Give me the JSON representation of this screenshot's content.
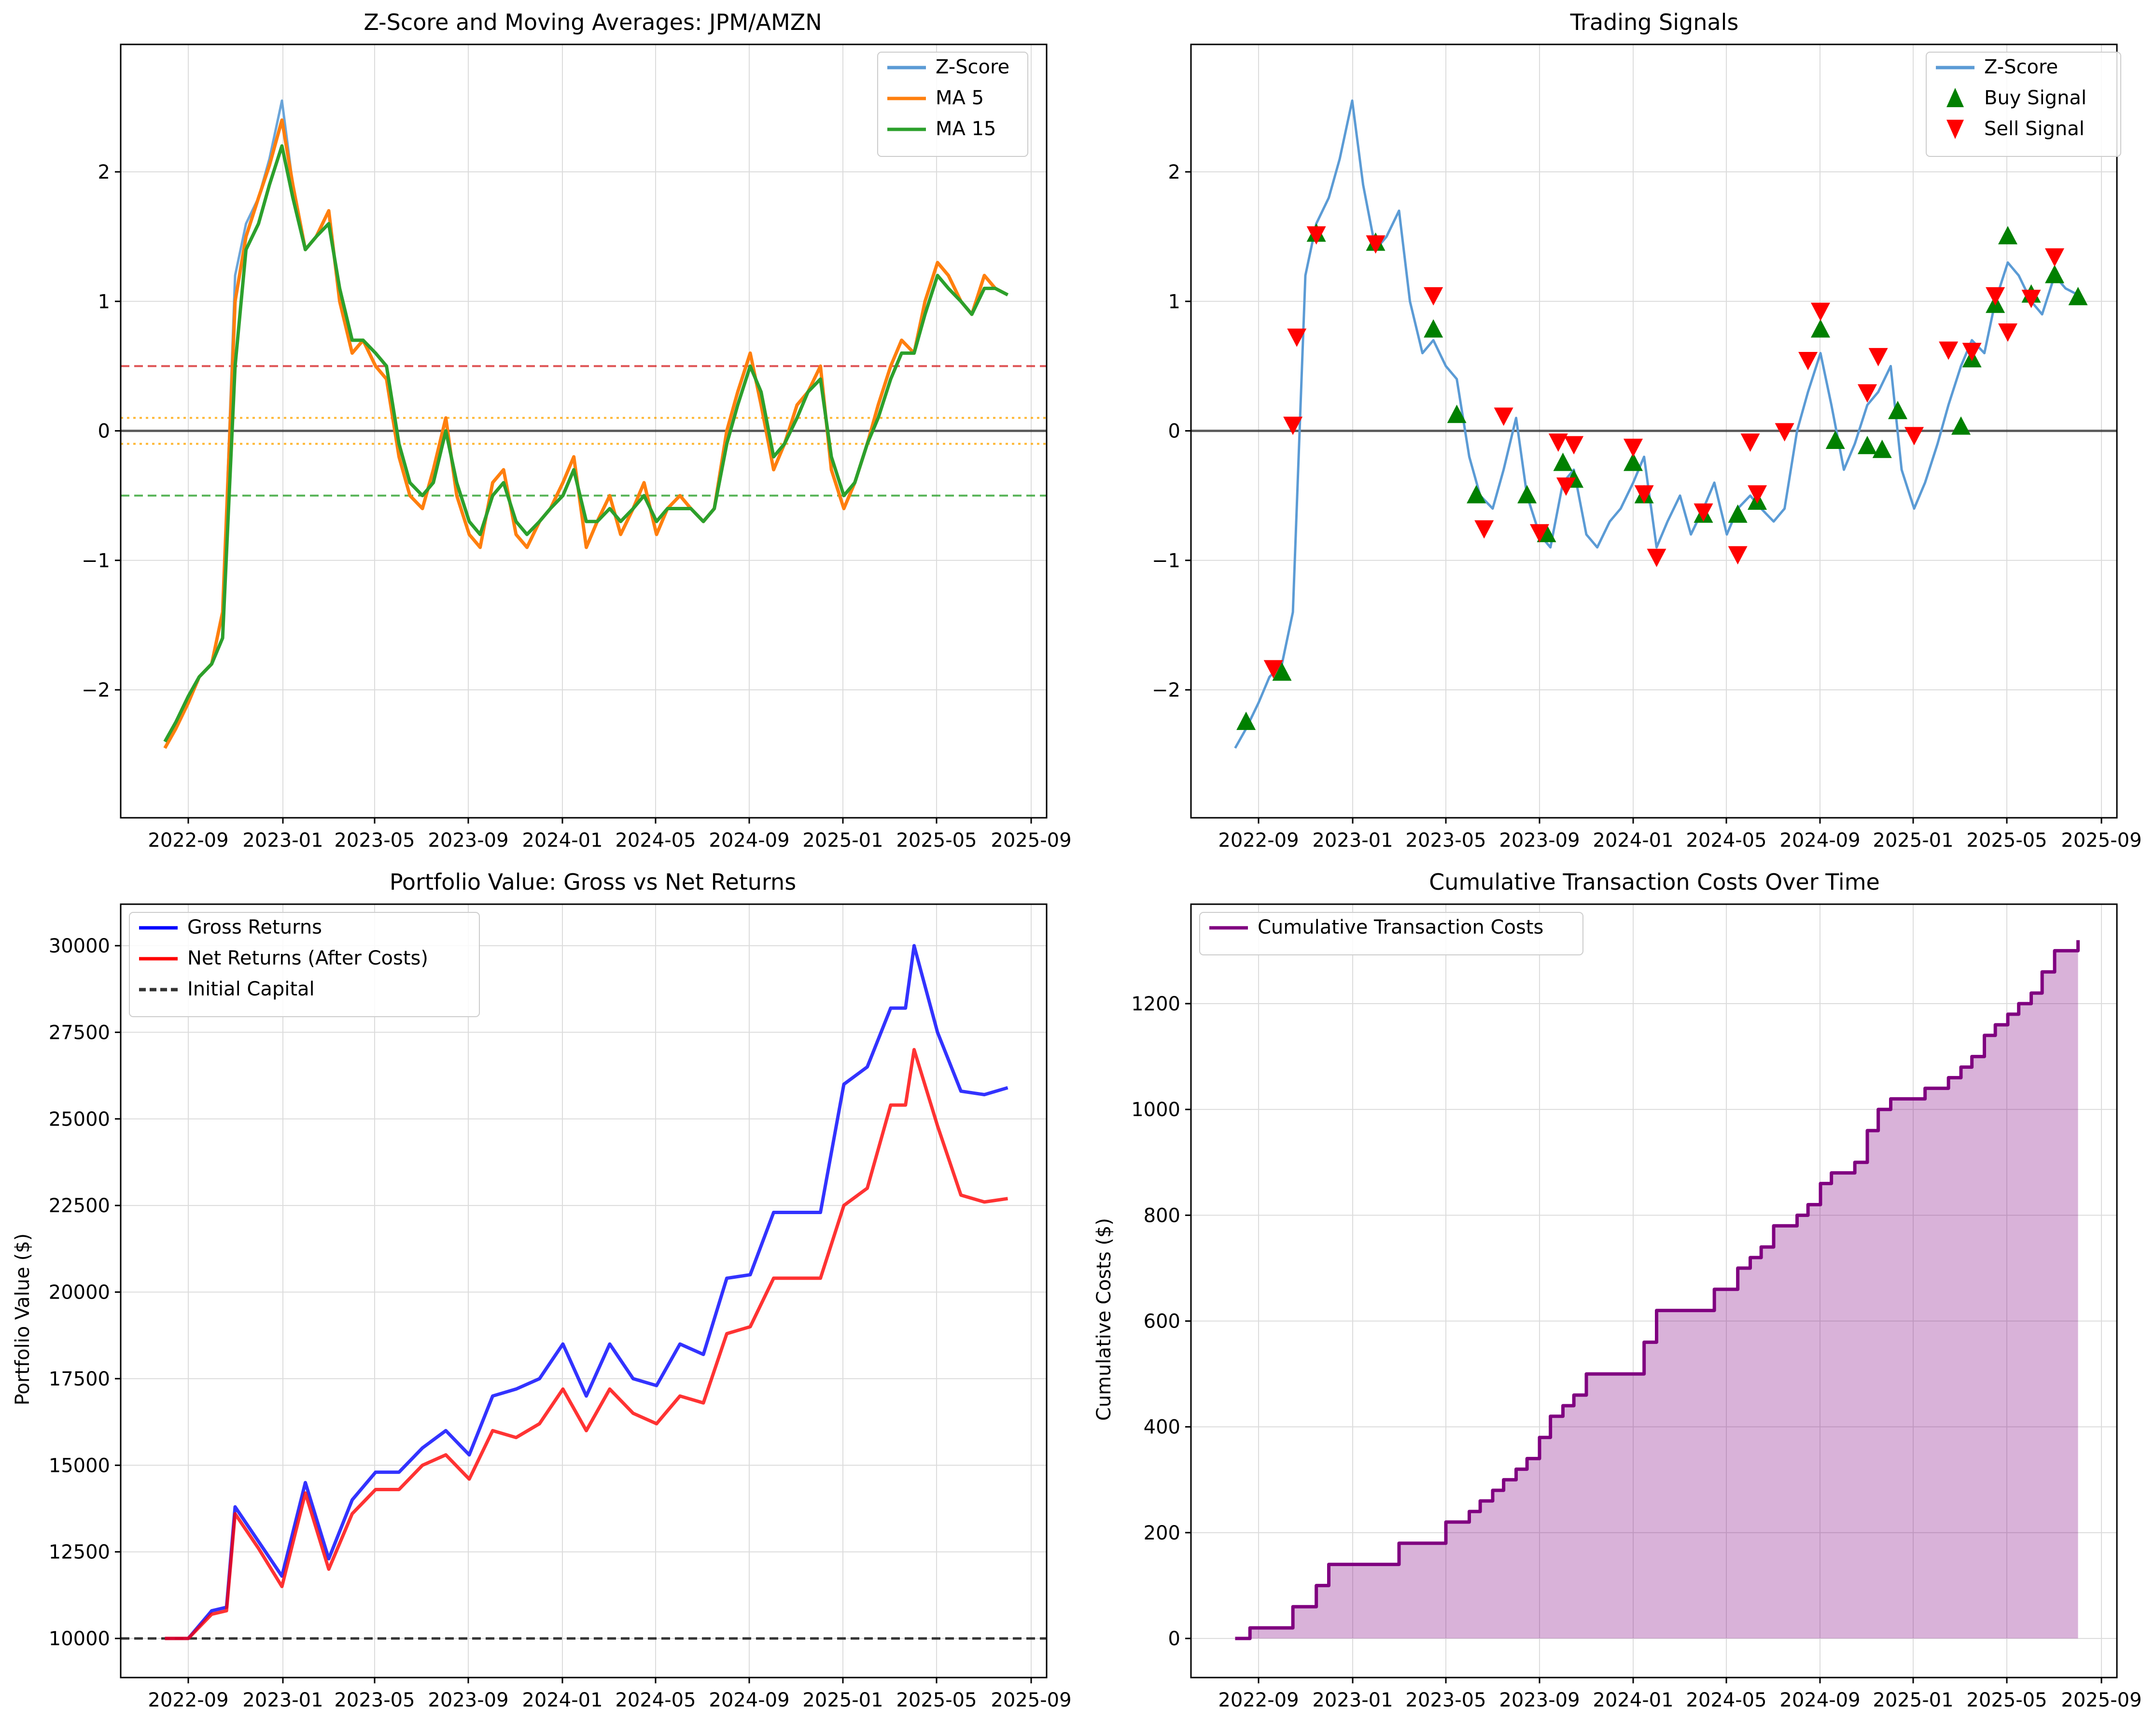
{
  "chart_data": [
    {
      "type": "line",
      "title": "Z-Score and Moving Averages: JPM/AMZN",
      "xlabel": "",
      "ylabel": "",
      "x_ticks": [
        "2022-09",
        "2023-01",
        "2023-05",
        "2023-09",
        "2024-01",
        "2024-05",
        "2024-09",
        "2025-01",
        "2025-05",
        "2025-09"
      ],
      "y_ticks": [
        "−2",
        "−1",
        "0",
        "1",
        "2"
      ],
      "ylim": [
        -3.0,
        3.0
      ],
      "grid": true,
      "legend_position": "top-right",
      "x_dates": [
        "2022-08-01",
        "2022-08-15",
        "2022-09-01",
        "2022-09-15",
        "2022-10-01",
        "2022-10-15",
        "2022-11-01",
        "2022-11-15",
        "2022-12-01",
        "2022-12-15",
        "2023-01-01",
        "2023-01-15",
        "2023-02-01",
        "2023-02-15",
        "2023-03-01",
        "2023-03-15",
        "2023-04-01",
        "2023-04-15",
        "2023-05-01",
        "2023-05-15",
        "2023-06-01",
        "2023-06-15",
        "2023-07-01",
        "2023-07-15",
        "2023-08-01",
        "2023-08-15",
        "2023-09-01",
        "2023-09-15",
        "2023-10-01",
        "2023-10-15",
        "2023-11-01",
        "2023-11-15",
        "2023-12-01",
        "2023-12-15",
        "2024-01-01",
        "2024-01-15",
        "2024-02-01",
        "2024-02-15",
        "2024-03-01",
        "2024-03-15",
        "2024-04-01",
        "2024-04-15",
        "2024-05-01",
        "2024-05-15",
        "2024-06-01",
        "2024-06-15",
        "2024-07-01",
        "2024-07-15",
        "2024-08-01",
        "2024-08-15",
        "2024-09-01",
        "2024-09-15",
        "2024-10-01",
        "2024-10-15",
        "2024-11-01",
        "2024-11-15",
        "2024-12-01",
        "2024-12-15",
        "2025-01-01",
        "2025-01-15",
        "2025-02-01",
        "2025-02-15",
        "2025-03-01",
        "2025-03-15",
        "2025-04-01",
        "2025-04-15",
        "2025-05-01",
        "2025-05-15",
        "2025-06-01",
        "2025-06-15",
        "2025-07-01",
        "2025-07-15",
        "2025-08-01"
      ],
      "series": [
        {
          "name": "Z-Score",
          "color": "#5b9bd5",
          "values": [
            -2.45,
            -2.3,
            -2.1,
            -1.9,
            -1.8,
            -1.4,
            1.2,
            1.6,
            1.8,
            2.1,
            2.55,
            1.9,
            1.4,
            1.5,
            1.7,
            1.0,
            0.6,
            0.7,
            0.5,
            0.4,
            -0.2,
            -0.5,
            -0.6,
            -0.3,
            0.1,
            -0.5,
            -0.8,
            -0.9,
            -0.4,
            -0.3,
            -0.8,
            -0.9,
            -0.7,
            -0.6,
            -0.4,
            -0.2,
            -0.9,
            -0.7,
            -0.5,
            -0.8,
            -0.6,
            -0.4,
            -0.8,
            -0.6,
            -0.5,
            -0.6,
            -0.7,
            -0.6,
            0.0,
            0.3,
            0.6,
            0.2,
            -0.3,
            -0.1,
            0.2,
            0.3,
            0.5,
            -0.3,
            -0.6,
            -0.4,
            -0.1,
            0.2,
            0.5,
            0.7,
            0.6,
            1.0,
            1.3,
            1.2,
            1.0,
            0.9,
            1.2,
            1.1,
            1.05
          ]
        },
        {
          "name": "MA 5",
          "color": "#ff7f0e",
          "values": [
            -2.45,
            -2.3,
            -2.1,
            -1.9,
            -1.8,
            -1.4,
            1.0,
            1.5,
            1.8,
            2.05,
            2.4,
            1.9,
            1.4,
            1.5,
            1.7,
            1.0,
            0.6,
            0.7,
            0.5,
            0.4,
            -0.2,
            -0.5,
            -0.6,
            -0.3,
            0.1,
            -0.5,
            -0.8,
            -0.9,
            -0.4,
            -0.3,
            -0.8,
            -0.9,
            -0.7,
            -0.6,
            -0.4,
            -0.2,
            -0.9,
            -0.7,
            -0.5,
            -0.8,
            -0.6,
            -0.4,
            -0.8,
            -0.6,
            -0.5,
            -0.6,
            -0.7,
            -0.6,
            0.0,
            0.3,
            0.6,
            0.2,
            -0.3,
            -0.1,
            0.2,
            0.3,
            0.5,
            -0.3,
            -0.6,
            -0.4,
            -0.1,
            0.2,
            0.5,
            0.7,
            0.6,
            1.0,
            1.3,
            1.2,
            1.0,
            0.9,
            1.2,
            1.1,
            1.05
          ]
        },
        {
          "name": "MA 15",
          "color": "#2ca02c",
          "values": [
            -2.4,
            -2.25,
            -2.05,
            -1.9,
            -1.8,
            -1.6,
            0.5,
            1.4,
            1.6,
            1.9,
            2.2,
            1.8,
            1.4,
            1.5,
            1.6,
            1.1,
            0.7,
            0.7,
            0.6,
            0.5,
            -0.1,
            -0.4,
            -0.5,
            -0.4,
            0.0,
            -0.4,
            -0.7,
            -0.8,
            -0.5,
            -0.4,
            -0.7,
            -0.8,
            -0.7,
            -0.6,
            -0.5,
            -0.3,
            -0.7,
            -0.7,
            -0.6,
            -0.7,
            -0.6,
            -0.5,
            -0.7,
            -0.6,
            -0.6,
            -0.6,
            -0.7,
            -0.6,
            -0.1,
            0.2,
            0.5,
            0.3,
            -0.2,
            -0.1,
            0.1,
            0.3,
            0.4,
            -0.2,
            -0.5,
            -0.4,
            -0.1,
            0.1,
            0.4,
            0.6,
            0.6,
            0.9,
            1.2,
            1.1,
            1.0,
            0.9,
            1.1,
            1.1,
            1.05
          ]
        }
      ],
      "reference_lines": [
        {
          "y": 0.5,
          "color": "#d62728",
          "style": "dashed"
        },
        {
          "y": -0.5,
          "color": "#2ca02c",
          "style": "dashed"
        },
        {
          "y": 0.1,
          "color": "#ffa500",
          "style": "dotted"
        },
        {
          "y": -0.1,
          "color": "#ffa500",
          "style": "dotted"
        },
        {
          "y": 0.0,
          "color": "#000000",
          "style": "solid"
        }
      ]
    },
    {
      "type": "scatter",
      "title": "Trading Signals",
      "xlabel": "",
      "ylabel": "",
      "x_ticks": [
        "2022-09",
        "2023-01",
        "2023-05",
        "2023-09",
        "2024-01",
        "2024-05",
        "2024-09",
        "2025-01",
        "2025-05",
        "2025-09"
      ],
      "y_ticks": [
        "−2",
        "−1",
        "0",
        "1",
        "2"
      ],
      "ylim": [
        -3.0,
        3.0
      ],
      "grid": true,
      "legend_position": "top-right",
      "zscore": {
        "name": "Z-Score",
        "color": "#5b9bd5"
      },
      "buy_signals": {
        "name": "Buy Signal",
        "color": "#008000",
        "x": [
          "2022-08-15",
          "2022-10-01",
          "2022-11-15",
          "2023-02-01",
          "2023-04-15",
          "2023-05-15",
          "2023-06-10",
          "2023-08-15",
          "2023-09-10",
          "2023-10-01",
          "2023-10-15",
          "2024-01-01",
          "2024-01-15",
          "2024-04-01",
          "2024-05-15",
          "2024-06-10",
          "2024-09-01",
          "2024-09-20",
          "2024-11-01",
          "2024-11-20",
          "2024-12-10",
          "2025-03-01",
          "2025-03-15",
          "2025-04-15",
          "2025-05-01",
          "2025-06-01",
          "2025-07-01",
          "2025-08-01"
        ],
        "values": [
          -2.25,
          -1.87,
          1.52,
          1.45,
          0.78,
          0.12,
          -0.5,
          -0.5,
          -0.8,
          -0.25,
          -0.38,
          -0.25,
          -0.5,
          -0.65,
          -0.65,
          -0.55,
          0.78,
          -0.08,
          -0.12,
          -0.15,
          0.15,
          0.03,
          0.55,
          0.97,
          1.5,
          1.05,
          1.2,
          1.03
        ]
      },
      "sell_signals": {
        "name": "Sell Signal",
        "color": "#ff0000",
        "x": [
          "2022-09-20",
          "2022-10-15",
          "2022-10-20",
          "2022-11-15",
          "2023-02-01",
          "2023-04-15",
          "2023-06-20",
          "2023-07-15",
          "2023-09-01",
          "2023-09-25",
          "2023-10-05",
          "2023-10-15",
          "2024-01-01",
          "2024-01-15",
          "2024-02-01",
          "2024-04-01",
          "2024-05-15",
          "2024-06-01",
          "2024-06-10",
          "2024-07-15",
          "2024-08-15",
          "2024-09-01",
          "2024-11-01",
          "2024-11-15",
          "2025-01-01",
          "2025-02-15",
          "2025-03-15",
          "2025-04-15",
          "2025-05-01",
          "2025-06-01",
          "2025-07-01"
        ],
        "values": [
          -1.83,
          0.05,
          0.73,
          1.52,
          1.45,
          1.05,
          -0.75,
          0.12,
          -0.78,
          -0.08,
          -0.42,
          -0.1,
          -0.12,
          -0.48,
          -0.97,
          -0.62,
          -0.95,
          -0.08,
          -0.48,
          0.0,
          0.55,
          0.93,
          0.3,
          0.58,
          -0.03,
          0.63,
          0.62,
          1.05,
          0.77,
          1.03,
          1.35
        ]
      },
      "reference_lines": [
        {
          "y": 0.0,
          "color": "#000000",
          "style": "solid"
        }
      ]
    },
    {
      "type": "line",
      "title": "Portfolio Value: Gross vs Net Returns",
      "xlabel": "",
      "ylabel": "Portfolio Value ($)",
      "x_ticks": [
        "2022-09",
        "2023-01",
        "2023-05",
        "2023-09",
        "2024-01",
        "2024-05",
        "2024-09",
        "2025-01",
        "2025-05",
        "2025-09"
      ],
      "y_ticks": [
        "10000",
        "12500",
        "15000",
        "17500",
        "20000",
        "22500",
        "25000",
        "27500",
        "30000"
      ],
      "ylim": [
        9000,
        31000
      ],
      "grid": true,
      "legend_position": "top-left",
      "x_dates": [
        "2022-08-01",
        "2022-09-01",
        "2022-10-01",
        "2022-10-20",
        "2022-11-01",
        "2022-12-01",
        "2023-01-01",
        "2023-02-01",
        "2023-03-01",
        "2023-04-01",
        "2023-05-01",
        "2023-06-01",
        "2023-07-01",
        "2023-08-01",
        "2023-09-01",
        "2023-10-01",
        "2023-11-01",
        "2023-12-01",
        "2024-01-01",
        "2024-02-01",
        "2024-03-01",
        "2024-04-01",
        "2024-05-01",
        "2024-06-01",
        "2024-07-01",
        "2024-08-01",
        "2024-09-01",
        "2024-10-01",
        "2024-11-01",
        "2024-12-01",
        "2025-01-01",
        "2025-02-01",
        "2025-03-01",
        "2025-03-20",
        "2025-04-01",
        "2025-05-01",
        "2025-06-01",
        "2025-07-01",
        "2025-08-01"
      ],
      "series": [
        {
          "name": "Gross Returns",
          "color": "#0000ff",
          "values": [
            10000,
            10000,
            10800,
            10900,
            13800,
            12800,
            11800,
            14500,
            12300,
            14000,
            14800,
            14800,
            15500,
            16000,
            15300,
            17000,
            17200,
            17500,
            18500,
            17000,
            18500,
            17500,
            17300,
            18500,
            18200,
            20400,
            20500,
            22300,
            22300,
            22300,
            26000,
            26500,
            28200,
            28200,
            30000,
            27500,
            25800,
            25700,
            25900
          ]
        },
        {
          "name": "Net Returns (After Costs)",
          "color": "#ff0000",
          "values": [
            10000,
            10000,
            10700,
            10800,
            13600,
            12600,
            11500,
            14200,
            12000,
            13600,
            14300,
            14300,
            15000,
            15300,
            14600,
            16000,
            15800,
            16200,
            17200,
            16000,
            17200,
            16500,
            16200,
            17000,
            16800,
            18800,
            19000,
            20400,
            20400,
            20400,
            22500,
            23000,
            25400,
            25400,
            27000,
            24800,
            22800,
            22600,
            22700
          ]
        },
        {
          "name": "Initial Capital",
          "color": "#333333",
          "style": "dashed",
          "values": [
            10000,
            10000
          ]
        }
      ]
    },
    {
      "type": "area",
      "title": "Cumulative Transaction Costs Over Time",
      "xlabel": "",
      "ylabel": "Cumulative Costs ($)",
      "x_ticks": [
        "2022-09",
        "2023-01",
        "2023-05",
        "2023-09",
        "2024-01",
        "2024-05",
        "2024-09",
        "2025-01",
        "2025-05",
        "2025-09"
      ],
      "y_ticks": [
        "0",
        "200",
        "400",
        "600",
        "800",
        "1000",
        "1200"
      ],
      "ylim": [
        -70,
        1390
      ],
      "grid": true,
      "legend_position": "top-left",
      "x_dates": [
        "2022-08-01",
        "2022-08-20",
        "2022-09-01",
        "2022-10-01",
        "2022-10-15",
        "2022-11-01",
        "2022-11-15",
        "2022-12-01",
        "2023-01-01",
        "2023-02-01",
        "2023-03-01",
        "2023-04-01",
        "2023-05-01",
        "2023-06-01",
        "2023-06-15",
        "2023-07-01",
        "2023-07-15",
        "2023-08-01",
        "2023-08-15",
        "2023-09-01",
        "2023-09-15",
        "2023-10-01",
        "2023-10-15",
        "2023-11-01",
        "2023-12-01",
        "2024-01-01",
        "2024-01-15",
        "2024-02-01",
        "2024-03-01",
        "2024-04-01",
        "2024-04-15",
        "2024-05-01",
        "2024-05-15",
        "2024-06-01",
        "2024-06-15",
        "2024-07-01",
        "2024-07-15",
        "2024-08-01",
        "2024-08-15",
        "2024-09-01",
        "2024-09-15",
        "2024-10-01",
        "2024-10-15",
        "2024-11-01",
        "2024-11-15",
        "2024-12-01",
        "2025-01-01",
        "2025-01-15",
        "2025-02-01",
        "2025-02-15",
        "2025-03-01",
        "2025-03-15",
        "2025-04-01",
        "2025-04-15",
        "2025-05-01",
        "2025-05-15",
        "2025-06-01",
        "2025-06-15",
        "2025-07-01",
        "2025-08-01"
      ],
      "series": [
        {
          "name": "Cumulative Transaction Costs",
          "color": "#800080",
          "values": [
            0,
            20,
            20,
            20,
            60,
            60,
            100,
            140,
            140,
            140,
            180,
            180,
            220,
            240,
            260,
            280,
            300,
            320,
            340,
            380,
            420,
            440,
            460,
            500,
            500,
            500,
            560,
            620,
            620,
            620,
            660,
            660,
            700,
            720,
            740,
            780,
            780,
            800,
            820,
            860,
            880,
            880,
            900,
            960,
            1000,
            1020,
            1020,
            1040,
            1040,
            1060,
            1080,
            1100,
            1140,
            1160,
            1180,
            1200,
            1220,
            1260,
            1300,
            1320
          ]
        }
      ]
    }
  ]
}
